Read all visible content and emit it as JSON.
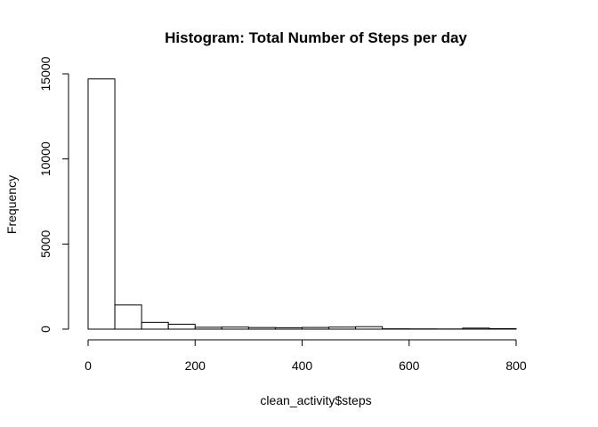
{
  "chart_data": {
    "type": "bar",
    "title": "Histogram: Total Number of Steps per day",
    "xlabel": "clean_activity$steps",
    "ylabel": "Frequency",
    "bin_edges": [
      0,
      50,
      100,
      150,
      200,
      250,
      300,
      350,
      400,
      450,
      500,
      550,
      600,
      650,
      700,
      750,
      800
    ],
    "values": [
      14700,
      1420,
      400,
      290,
      110,
      120,
      95,
      85,
      100,
      120,
      145,
      20,
      15,
      10,
      60,
      30
    ],
    "xlim": [
      0,
      850
    ],
    "ylim": [
      0,
      15000
    ],
    "xticks": [
      0,
      200,
      400,
      600,
      800
    ],
    "yticks": [
      0,
      5000,
      10000,
      15000
    ],
    "xtick_labels": [
      "0",
      "200",
      "400",
      "600",
      "800"
    ],
    "ytick_labels": [
      "0",
      "5000",
      "10000",
      "15000"
    ],
    "grid": false,
    "legend": "none"
  }
}
